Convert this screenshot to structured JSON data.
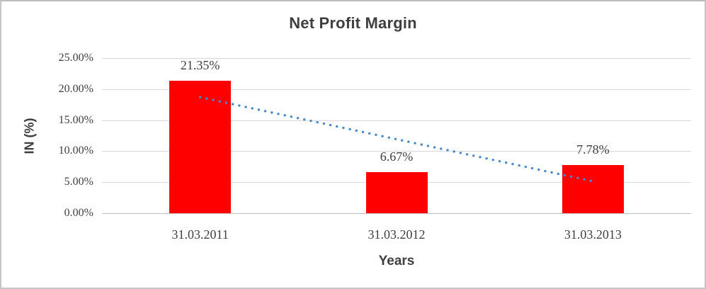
{
  "chart_data": {
    "type": "bar",
    "title": "Net Profit Margin",
    "xlabel": "Years",
    "ylabel": "IN (%)",
    "categories": [
      "31.03.2011",
      "31.03.2012",
      "31.03.2013"
    ],
    "values": [
      21.35,
      6.67,
      7.78
    ],
    "value_labels": [
      "21.35%",
      "6.67%",
      "7.78%"
    ],
    "ytick_labels": [
      "0.00%",
      "5.00%",
      "10.00%",
      "15.00%",
      "20.00%",
      "25.00%"
    ],
    "ytick_values": [
      0,
      5,
      10,
      15,
      20,
      25
    ],
    "ylim": [
      0,
      25
    ],
    "grid": true,
    "legend": "none",
    "bar_color": "#ff0000",
    "gridline_color": "#d9d9d9",
    "text_color": "#3f3f3f",
    "trendline": {
      "style": "dotted",
      "color": "#4a89c8",
      "start_value": 18.7,
      "end_value": 5.15
    }
  }
}
